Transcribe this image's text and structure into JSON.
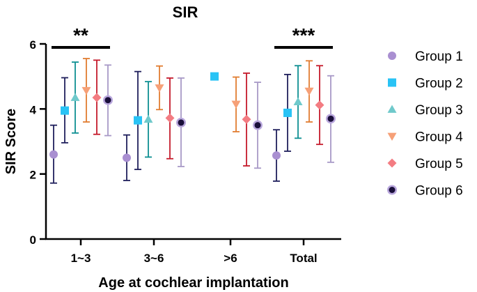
{
  "chart_data": {
    "type": "scatter",
    "title": "SIR",
    "xlabel": "Age at cochlear implantation",
    "ylabel": "SIR Score",
    "categories": [
      "1~3",
      "3~6",
      ">6",
      "Total"
    ],
    "ylim": [
      0,
      6
    ],
    "yticks": [
      0,
      2,
      4,
      6
    ],
    "grid": false,
    "legend_position": "right",
    "error_bars": "mean ± SD",
    "series": [
      {
        "name": "Group 1",
        "color": "#a98fd1",
        "marker": "circle",
        "values": [
          2.6,
          2.5,
          null,
          2.57
        ],
        "lower": [
          1.72,
          1.8,
          null,
          1.78
        ],
        "upper": [
          3.5,
          3.2,
          null,
          3.36
        ]
      },
      {
        "name": "Group 2",
        "color": "#29c3f5",
        "marker": "square",
        "values": [
          3.95,
          3.65,
          5.0,
          3.88
        ],
        "lower": [
          2.96,
          2.14,
          null,
          2.7
        ],
        "upper": [
          4.96,
          5.15,
          null,
          5.06
        ]
      },
      {
        "name": "Group 3",
        "color": "#6fc9cb",
        "marker": "triangle-up",
        "values": [
          4.35,
          3.68,
          null,
          4.22
        ],
        "lower": [
          3.26,
          2.52,
          null,
          3.1
        ],
        "upper": [
          5.44,
          4.84,
          null,
          5.33
        ]
      },
      {
        "name": "Group 4",
        "color": "#f6a077",
        "marker": "triangle-down",
        "values": [
          4.57,
          4.65,
          4.15,
          4.55
        ],
        "lower": [
          3.6,
          3.98,
          3.3,
          3.6
        ],
        "upper": [
          5.55,
          5.32,
          4.98,
          5.48
        ]
      },
      {
        "name": "Group 5",
        "color": "#f37c82",
        "marker": "diamond",
        "values": [
          4.35,
          3.72,
          3.68,
          4.12
        ],
        "lower": [
          3.22,
          2.47,
          2.25,
          2.91
        ],
        "upper": [
          5.5,
          4.95,
          5.1,
          5.33
        ]
      },
      {
        "name": "Group 6",
        "color": "#b9a7dd",
        "marker": "circle-filled-dark",
        "values": [
          4.27,
          3.58,
          3.5,
          3.7
        ],
        "lower": [
          3.18,
          2.23,
          2.18,
          2.36
        ],
        "upper": [
          5.35,
          4.95,
          4.82,
          5.02
        ]
      }
    ],
    "error_bar_colors": [
      "#1f1f5c",
      "#1f1f5c",
      "#0d8f92",
      "#e17d31",
      "#c51a2b",
      "#a899c7"
    ],
    "annotations": [
      {
        "text": "**",
        "category_index": 0
      },
      {
        "text": "***",
        "category_index": 3
      }
    ]
  }
}
